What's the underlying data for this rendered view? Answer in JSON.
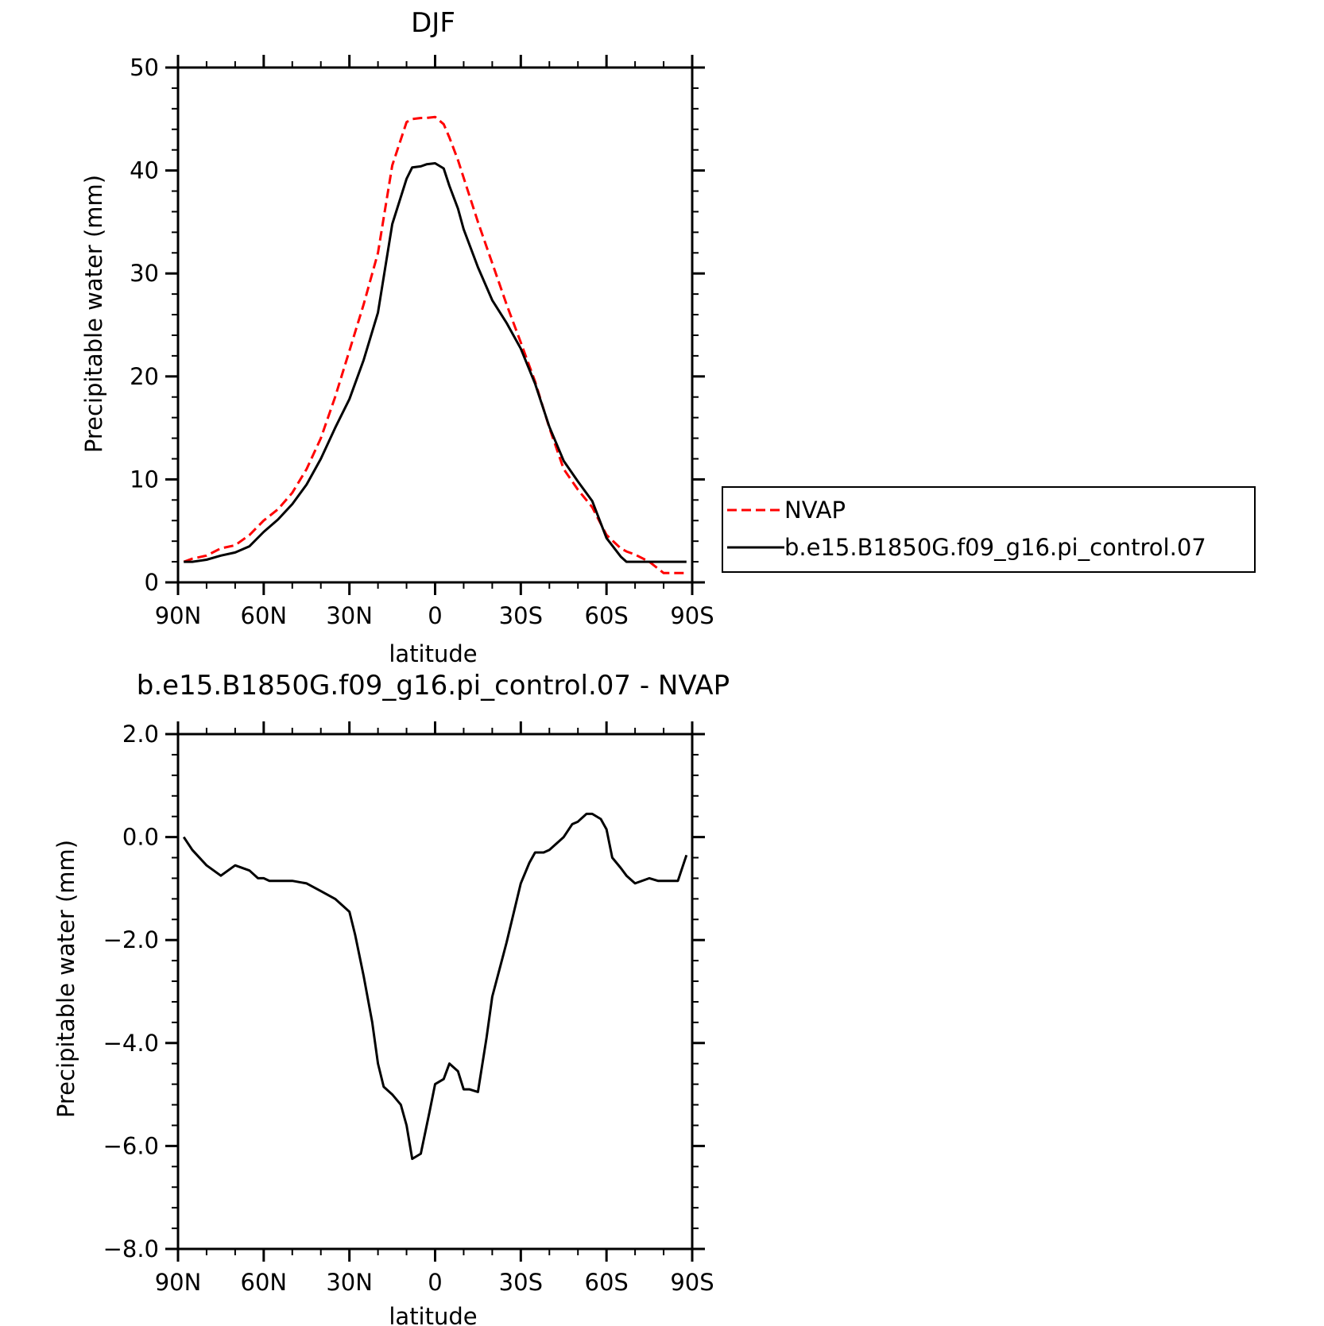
{
  "chart_data": [
    {
      "type": "line",
      "title": "DJF",
      "xlabel": "latitude",
      "ylabel": "Precipitable water (mm)",
      "xlim": [
        90,
        -90
      ],
      "ylim": [
        0,
        50
      ],
      "x_ticks": [
        90,
        60,
        30,
        0,
        -30,
        -60,
        -90
      ],
      "x_tick_labels": [
        "90N",
        "60N",
        "30N",
        "0",
        "30S",
        "60S",
        "90S"
      ],
      "y_ticks": [
        0,
        10,
        20,
        30,
        40,
        50
      ],
      "y_tick_labels": [
        "0",
        "10",
        "20",
        "30",
        "40",
        "50"
      ],
      "legend_position": "right",
      "x": [
        88,
        85,
        80,
        75,
        70,
        65,
        60,
        55,
        50,
        45,
        40,
        35,
        30,
        25,
        20,
        15,
        10,
        8,
        5,
        3,
        0,
        -3,
        -5,
        -8,
        -10,
        -15,
        -20,
        -25,
        -30,
        -35,
        -40,
        -45,
        -50,
        -55,
        -60,
        -65,
        -67,
        -70,
        -75,
        -80,
        -85,
        -88
      ],
      "series": [
        {
          "name": "NVAP",
          "color": "#ff0000",
          "dash": "dashed",
          "values": [
            2.0,
            2.3,
            2.6,
            3.3,
            3.6,
            4.6,
            6.0,
            7.1,
            8.7,
            11.0,
            14.0,
            18.0,
            22.5,
            27.0,
            32.0,
            40.5,
            44.7,
            45.0,
            45.1,
            45.1,
            45.2,
            44.5,
            43.2,
            41.0,
            39.3,
            35.0,
            31.0,
            27.0,
            23.3,
            19.5,
            15.0,
            11.0,
            9.0,
            7.3,
            4.6,
            3.3,
            3.0,
            2.7,
            2.0,
            0.9,
            0.9,
            0.9
          ]
        },
        {
          "name": "b.e15.B1850G.f09_g16.pi_control.07",
          "color": "#000000",
          "dash": "solid",
          "values": [
            2.0,
            2.0,
            2.2,
            2.6,
            2.9,
            3.5,
            4.9,
            6.1,
            7.6,
            9.5,
            12.0,
            15.0,
            17.8,
            21.6,
            26.2,
            34.8,
            39.2,
            40.3,
            40.4,
            40.6,
            40.7,
            40.2,
            38.5,
            36.3,
            34.3,
            30.6,
            27.4,
            25.2,
            22.7,
            19.3,
            15.1,
            11.8,
            9.8,
            7.9,
            4.3,
            2.5,
            2.0,
            2.0,
            2.0,
            2.0,
            2.0,
            2.0
          ]
        }
      ]
    },
    {
      "type": "line",
      "title": "b.e15.B1850G.f09_g16.pi_control.07 - NVAP",
      "xlabel": "latitude",
      "ylabel": "Precipitable water (mm)",
      "xlim": [
        90,
        -90
      ],
      "ylim": [
        -8.0,
        2.0
      ],
      "x_ticks": [
        90,
        60,
        30,
        0,
        -30,
        -60,
        -90
      ],
      "x_tick_labels": [
        "90N",
        "60N",
        "30N",
        "0",
        "30S",
        "60S",
        "90S"
      ],
      "y_ticks": [
        2.0,
        0.0,
        -2.0,
        -4.0,
        -6.0,
        -8.0
      ],
      "y_tick_labels": [
        "2.0",
        "0.0",
        "−2.0",
        "−4.0",
        "−6.0",
        "−8.0"
      ],
      "x": [
        88,
        85,
        80,
        75,
        70,
        65,
        62,
        60,
        58,
        55,
        50,
        45,
        40,
        35,
        30,
        28,
        25,
        22,
        20,
        18,
        15,
        12,
        10,
        8,
        5,
        2,
        0,
        -3,
        -5,
        -8,
        -10,
        -12,
        -15,
        -18,
        -20,
        -25,
        -30,
        -33,
        -35,
        -38,
        -40,
        -45,
        -48,
        -50,
        -53,
        -55,
        -58,
        -60,
        -62,
        -65,
        -67,
        -70,
        -75,
        -78,
        -80,
        -83,
        -85,
        -88
      ],
      "series": [
        {
          "name": "",
          "color": "#000000",
          "dash": "solid",
          "values": [
            0.0,
            -0.25,
            -0.55,
            -0.75,
            -0.55,
            -0.65,
            -0.8,
            -0.8,
            -0.85,
            -0.85,
            -0.85,
            -0.9,
            -1.05,
            -1.2,
            -1.45,
            -1.9,
            -2.7,
            -3.6,
            -4.4,
            -4.85,
            -5.0,
            -5.2,
            -5.6,
            -6.25,
            -6.15,
            -5.35,
            -4.8,
            -4.7,
            -4.4,
            -4.55,
            -4.9,
            -4.9,
            -4.95,
            -3.9,
            -3.1,
            -2.05,
            -0.9,
            -0.5,
            -0.3,
            -0.3,
            -0.25,
            0.0,
            0.25,
            0.3,
            0.45,
            0.45,
            0.35,
            0.15,
            -0.4,
            -0.6,
            -0.75,
            -0.9,
            -0.8,
            -0.85,
            -0.85,
            -0.85,
            -0.85,
            -0.35
          ]
        }
      ]
    }
  ]
}
